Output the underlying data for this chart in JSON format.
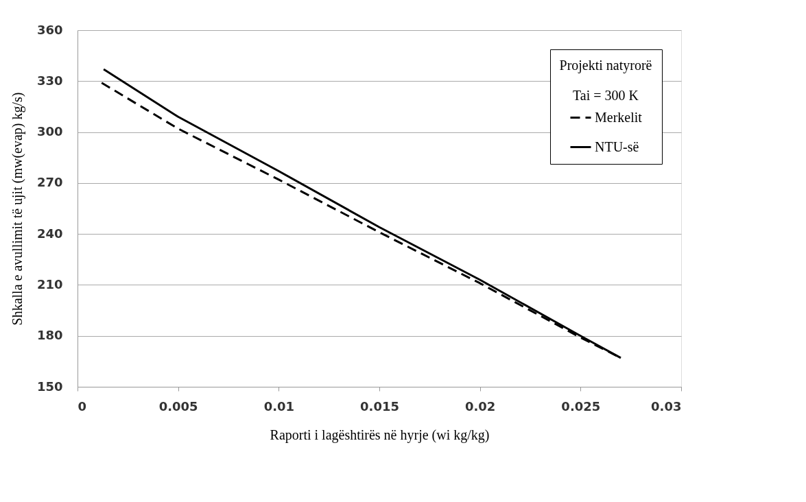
{
  "chart_data": {
    "type": "line",
    "xlabel": "Raporti i lagështirës në hyrje (wi kg/kg)",
    "ylabel": "Shkalla e avullimit të ujit (mw(evap) kg/s)",
    "legend_title": "Projekti natyrorë",
    "annotations": [
      "Tai = 300 K"
    ],
    "series": [
      {
        "name": "Merkelit",
        "color": "#000000",
        "line_style": "dashed",
        "x": [
          0.0012,
          0.005,
          0.01,
          0.015,
          0.02,
          0.025,
          0.027
        ],
        "values": [
          329,
          302,
          272,
          241,
          211,
          179,
          167
        ]
      },
      {
        "name": "NTU-së",
        "color": "#000000",
        "line_style": "solid",
        "x": [
          0.0013,
          0.005,
          0.01,
          0.015,
          0.02,
          0.025,
          0.027
        ],
        "values": [
          337,
          309,
          277,
          244,
          213,
          180,
          167
        ]
      }
    ],
    "xlim": [
      0,
      0.03
    ],
    "xticks": [
      0,
      0.005,
      0.01,
      0.015,
      0.02,
      0.025,
      0.03
    ],
    "ylim": [
      150,
      360
    ],
    "yticks": [
      150,
      180,
      210,
      240,
      270,
      300,
      330,
      360
    ],
    "grid": "y",
    "legend": "top right",
    "marker": "none"
  }
}
